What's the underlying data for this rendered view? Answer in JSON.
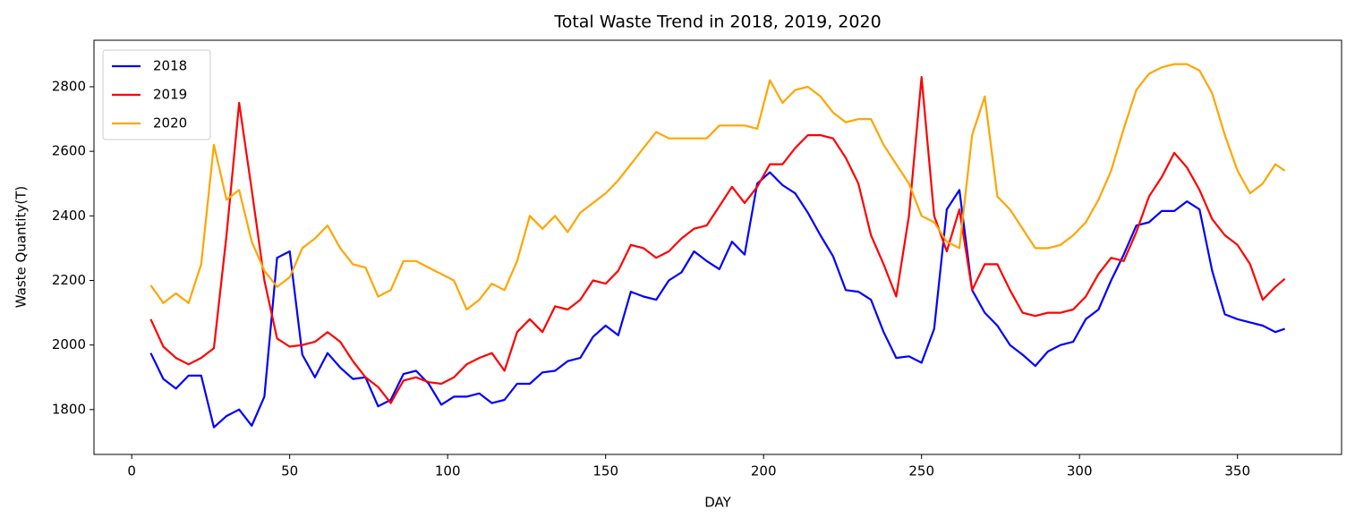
{
  "chart_data": {
    "type": "line",
    "title": "Total Waste Trend in 2018, 2019, 2020",
    "xlabel": "DAY",
    "ylabel": "Waste Quantity(T)",
    "x": [
      6,
      10,
      14,
      18,
      22,
      26,
      30,
      34,
      38,
      42,
      46,
      50,
      54,
      58,
      62,
      66,
      70,
      74,
      78,
      82,
      86,
      90,
      94,
      98,
      102,
      106,
      110,
      114,
      118,
      122,
      126,
      130,
      134,
      138,
      142,
      146,
      150,
      154,
      158,
      162,
      166,
      170,
      174,
      178,
      182,
      186,
      190,
      194,
      198,
      202,
      206,
      210,
      214,
      218,
      222,
      226,
      230,
      234,
      238,
      242,
      246,
      250,
      254,
      258,
      262,
      266,
      270,
      274,
      278,
      282,
      286,
      290,
      294,
      298,
      302,
      306,
      310,
      314,
      318,
      322,
      326,
      330,
      334,
      338,
      342,
      346,
      350,
      354,
      358,
      362,
      365
    ],
    "series": [
      {
        "name": "2018",
        "color": "#0000ff",
        "values": [
          1975,
          1895,
          1865,
          1905,
          1905,
          1745,
          1780,
          1800,
          1750,
          1840,
          2270,
          2290,
          1970,
          1900,
          1975,
          1930,
          1895,
          1900,
          1810,
          1830,
          1910,
          1920,
          1880,
          1815,
          1840,
          1840,
          1850,
          1820,
          1830,
          1880,
          1880,
          1915,
          1920,
          1950,
          1960,
          2025,
          2060,
          2030,
          2165,
          2150,
          2140,
          2200,
          2225,
          2290,
          2260,
          2235,
          2320,
          2280,
          2500,
          2535,
          2495,
          2470,
          2410,
          2340,
          2275,
          2170,
          2165,
          2140,
          2040,
          1960,
          1965,
          1945,
          2050,
          2420,
          2480,
          2170,
          2100,
          2060,
          2000,
          1970,
          1935,
          1980,
          2000,
          2010,
          2080,
          2110,
          2200,
          2280,
          2370,
          2380,
          2415,
          2415,
          2445,
          2420,
          2230,
          2095,
          2080,
          2070,
          2060,
          2040,
          2050
        ]
      },
      {
        "name": "2019",
        "color": "#ff0000",
        "values": [
          2080,
          1995,
          1960,
          1940,
          1960,
          1990,
          2340,
          2750,
          2480,
          2200,
          2020,
          1995,
          2000,
          2010,
          2040,
          2010,
          1950,
          1900,
          1870,
          1820,
          1890,
          1900,
          1885,
          1880,
          1900,
          1940,
          1960,
          1975,
          1920,
          2040,
          2080,
          2040,
          2120,
          2110,
          2140,
          2200,
          2190,
          2230,
          2310,
          2300,
          2270,
          2290,
          2330,
          2360,
          2370,
          2430,
          2490,
          2440,
          2490,
          2560,
          2560,
          2610,
          2650,
          2650,
          2640,
          2580,
          2500,
          2340,
          2250,
          2150,
          2400,
          2830,
          2400,
          2290,
          2420,
          2170,
          2250,
          2250,
          2170,
          2100,
          2090,
          2100,
          2100,
          2110,
          2150,
          2220,
          2270,
          2260,
          2350,
          2460,
          2520,
          2595,
          2550,
          2480,
          2390,
          2340,
          2310,
          2250,
          2140,
          2180,
          2205
        ]
      },
      {
        "name": "2020",
        "color": "#ffa500",
        "values": [
          2185,
          2130,
          2160,
          2130,
          2250,
          2620,
          2450,
          2480,
          2320,
          2230,
          2180,
          2210,
          2300,
          2330,
          2370,
          2300,
          2250,
          2240,
          2150,
          2170,
          2260,
          2260,
          2240,
          2220,
          2200,
          2110,
          2140,
          2190,
          2170,
          2260,
          2400,
          2360,
          2400,
          2350,
          2410,
          2440,
          2470,
          2510,
          2560,
          2610,
          2660,
          2640,
          2640,
          2640,
          2640,
          2680,
          2680,
          2680,
          2670,
          2820,
          2750,
          2790,
          2800,
          2770,
          2720,
          2690,
          2700,
          2700,
          2620,
          2560,
          2500,
          2400,
          2380,
          2320,
          2300,
          2650,
          2770,
          2460,
          2420,
          2360,
          2300,
          2300,
          2310,
          2340,
          2380,
          2450,
          2540,
          2670,
          2790,
          2840,
          2860,
          2870,
          2870,
          2850,
          2780,
          2650,
          2540,
          2470,
          2500,
          2560,
          2540
        ]
      }
    ],
    "xlim": [
      -11.95,
      382.95
    ],
    "xticks": [
      0,
      50,
      100,
      150,
      200,
      250,
      300,
      350
    ],
    "ylim": [
      1661,
      2944
    ],
    "yticks": [
      1800,
      2000,
      2200,
      2400,
      2600,
      2800
    ],
    "grid": false,
    "legend": "upper left"
  }
}
